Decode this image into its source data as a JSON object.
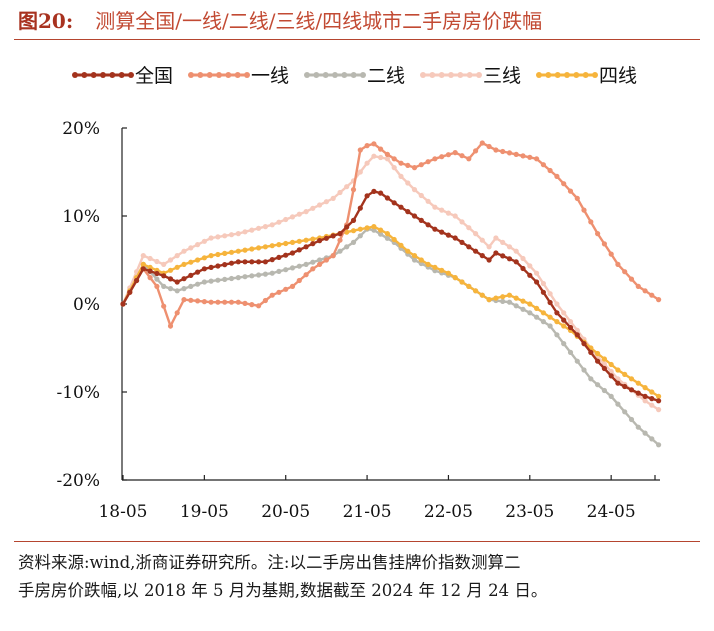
{
  "figure": {
    "label": "图20:",
    "title": "测算全国/一线/二线/三线/四线城市二手房房价跌幅"
  },
  "note": {
    "line1": "资料来源:wind,浙商证券研究所。注:以二手房出售挂牌价指数测算二",
    "line2": "手房房价跌幅,以 2018 年 5 月为基期,数据截至 2024 年 12 月 24 日。"
  },
  "chart_data": {
    "type": "line",
    "x_tick_labels": [
      "18-05",
      "19-05",
      "20-05",
      "21-05",
      "22-05",
      "23-05",
      "24-05"
    ],
    "x_range_months": [
      "2018-05",
      "2024-12"
    ],
    "ylim": [
      -20,
      20
    ],
    "y_ticks": [
      20,
      10,
      0,
      -10,
      -20
    ],
    "y_tick_labels": [
      "20%",
      "10%",
      "0%",
      "-10%",
      "-20%"
    ],
    "y_unit": "%",
    "legend_position": "top",
    "grid": false,
    "markers": "circle",
    "series": [
      {
        "name": "全国",
        "color": "#a3331d",
        "points": [
          [
            "2018-05",
            0
          ],
          [
            "2018-08",
            4.0
          ],
          [
            "2018-11",
            3.2
          ],
          [
            "2019-01",
            2.5
          ],
          [
            "2019-05",
            4.0
          ],
          [
            "2019-10",
            4.8
          ],
          [
            "2020-02",
            4.8
          ],
          [
            "2020-06",
            5.8
          ],
          [
            "2020-10",
            7.2
          ],
          [
            "2021-01",
            8.0
          ],
          [
            "2021-03",
            9.5
          ],
          [
            "2021-05",
            12.3
          ],
          [
            "2021-06",
            12.8
          ],
          [
            "2021-07",
            12.6
          ],
          [
            "2021-09",
            11.5
          ],
          [
            "2021-12",
            10.0
          ],
          [
            "2022-03",
            8.5
          ],
          [
            "2022-06",
            7.5
          ],
          [
            "2022-09",
            6.0
          ],
          [
            "2022-11",
            5.0
          ],
          [
            "2022-12",
            5.8
          ],
          [
            "2023-03",
            4.8
          ],
          [
            "2023-06",
            2.5
          ],
          [
            "2023-09",
            -1.0
          ],
          [
            "2023-12",
            -3.5
          ],
          [
            "2024-03",
            -6.5
          ],
          [
            "2024-06",
            -9.0
          ],
          [
            "2024-10",
            -10.5
          ],
          [
            "2024-12",
            -11.0
          ]
        ]
      },
      {
        "name": "一线",
        "color": "#ee9070",
        "points": [
          [
            "2018-05",
            0
          ],
          [
            "2018-08",
            4.0
          ],
          [
            "2018-10",
            2.0
          ],
          [
            "2018-12",
            -2.5
          ],
          [
            "2019-02",
            0.5
          ],
          [
            "2019-06",
            0.2
          ],
          [
            "2019-10",
            0.2
          ],
          [
            "2020-01",
            -0.2
          ],
          [
            "2020-03",
            1.0
          ],
          [
            "2020-06",
            2.0
          ],
          [
            "2020-09",
            4.0
          ],
          [
            "2020-12",
            5.5
          ],
          [
            "2021-02",
            9.0
          ],
          [
            "2021-03",
            13.0
          ],
          [
            "2021-04",
            17.5
          ],
          [
            "2021-05",
            18.0
          ],
          [
            "2021-06",
            18.2
          ],
          [
            "2021-08",
            17.0
          ],
          [
            "2021-10",
            16.0
          ],
          [
            "2021-12",
            15.5
          ],
          [
            "2022-03",
            16.5
          ],
          [
            "2022-06",
            17.2
          ],
          [
            "2022-08",
            16.5
          ],
          [
            "2022-10",
            18.3
          ],
          [
            "2022-12",
            17.5
          ],
          [
            "2023-03",
            17.0
          ],
          [
            "2023-06",
            16.5
          ],
          [
            "2023-09",
            14.5
          ],
          [
            "2023-12",
            12.0
          ],
          [
            "2024-03",
            8.0
          ],
          [
            "2024-06",
            4.5
          ],
          [
            "2024-09",
            2.0
          ],
          [
            "2024-11",
            1.0
          ],
          [
            "2024-12",
            0.5
          ]
        ]
      },
      {
        "name": "二线",
        "color": "#b8b8b0",
        "points": [
          [
            "2018-05",
            0
          ],
          [
            "2018-08",
            4.5
          ],
          [
            "2018-11",
            2.0
          ],
          [
            "2019-01",
            1.5
          ],
          [
            "2019-05",
            2.5
          ],
          [
            "2019-10",
            3.0
          ],
          [
            "2020-03",
            3.5
          ],
          [
            "2020-08",
            4.5
          ],
          [
            "2020-12",
            5.5
          ],
          [
            "2021-03",
            7.0
          ],
          [
            "2021-05",
            8.5
          ],
          [
            "2021-06",
            8.4
          ],
          [
            "2021-09",
            7.0
          ],
          [
            "2021-12",
            5.0
          ],
          [
            "2022-03",
            3.8
          ],
          [
            "2022-06",
            3.0
          ],
          [
            "2022-09",
            1.5
          ],
          [
            "2022-11",
            0.5
          ],
          [
            "2023-02",
            0.2
          ],
          [
            "2023-05",
            -1.0
          ],
          [
            "2023-08",
            -2.5
          ],
          [
            "2023-11",
            -5.5
          ],
          [
            "2024-02",
            -8.5
          ],
          [
            "2024-05",
            -10.5
          ],
          [
            "2024-09",
            -14.0
          ],
          [
            "2024-12",
            -16.0
          ]
        ]
      },
      {
        "name": "三线",
        "color": "#f6c9bb",
        "points": [
          [
            "2018-05",
            0
          ],
          [
            "2018-08",
            5.5
          ],
          [
            "2018-11",
            4.5
          ],
          [
            "2019-02",
            6.0
          ],
          [
            "2019-06",
            7.5
          ],
          [
            "2019-10",
            8.0
          ],
          [
            "2020-03",
            9.0
          ],
          [
            "2020-08",
            10.5
          ],
          [
            "2020-12",
            12.0
          ],
          [
            "2021-03",
            14.0
          ],
          [
            "2021-05",
            16.0
          ],
          [
            "2021-06",
            16.8
          ],
          [
            "2021-08",
            16.5
          ],
          [
            "2021-10",
            14.5
          ],
          [
            "2021-12",
            13.0
          ],
          [
            "2022-03",
            11.0
          ],
          [
            "2022-06",
            10.0
          ],
          [
            "2022-09",
            8.0
          ],
          [
            "2022-11",
            6.5
          ],
          [
            "2022-12",
            7.5
          ],
          [
            "2023-03",
            6.0
          ],
          [
            "2023-06",
            3.5
          ],
          [
            "2023-09",
            0
          ],
          [
            "2023-12",
            -3.0
          ],
          [
            "2024-03",
            -6.0
          ],
          [
            "2024-06",
            -8.5
          ],
          [
            "2024-10",
            -11.0
          ],
          [
            "2024-12",
            -12.0
          ]
        ]
      },
      {
        "name": "四线",
        "color": "#f6b43c",
        "points": [
          [
            "2018-05",
            0
          ],
          [
            "2018-08",
            4.5
          ],
          [
            "2018-11",
            3.5
          ],
          [
            "2019-02",
            4.5
          ],
          [
            "2019-06",
            5.5
          ],
          [
            "2019-10",
            6.0
          ],
          [
            "2020-02",
            6.5
          ],
          [
            "2020-06",
            7.0
          ],
          [
            "2020-10",
            7.5
          ],
          [
            "2021-01",
            8.0
          ],
          [
            "2021-04",
            8.5
          ],
          [
            "2021-06",
            8.8
          ],
          [
            "2021-08",
            8.0
          ],
          [
            "2021-11",
            6.0
          ],
          [
            "2022-02",
            4.5
          ],
          [
            "2022-05",
            3.5
          ],
          [
            "2022-08",
            2.0
          ],
          [
            "2022-11",
            0.5
          ],
          [
            "2023-02",
            1.0
          ],
          [
            "2023-05",
            0
          ],
          [
            "2023-08",
            -1.5
          ],
          [
            "2023-11",
            -3.0
          ],
          [
            "2024-02",
            -5.0
          ],
          [
            "2024-06",
            -7.5
          ],
          [
            "2024-10",
            -9.5
          ],
          [
            "2024-12",
            -10.5
          ]
        ]
      }
    ]
  }
}
